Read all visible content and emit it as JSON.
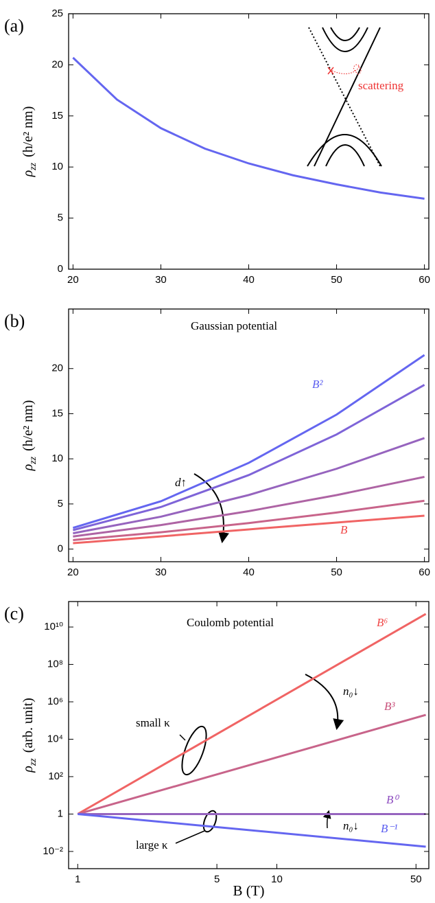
{
  "chart_data": [
    {
      "type": "line",
      "panel": "(a)",
      "ylabel": {
        "symbol": "ρ",
        "subscript": "zz",
        "unit": "(h/e² nm)"
      },
      "x": [
        20,
        25,
        30,
        35,
        40,
        45,
        50,
        55,
        60
      ],
      "series": [
        {
          "color": "#6466f0",
          "values": [
            20.7,
            16.6,
            13.8,
            11.8,
            10.35,
            9.2,
            8.3,
            7.5,
            6.9
          ]
        }
      ],
      "xlim": [
        19.5,
        60.5
      ],
      "xticks": [
        20,
        30,
        40,
        50,
        60
      ],
      "ylim": [
        0,
        25
      ],
      "yticks": [
        0,
        5,
        10,
        15,
        20,
        25
      ],
      "annotations": [
        "scattering"
      ]
    },
    {
      "type": "line",
      "panel": "(b)",
      "ylabel": {
        "symbol": "ρ",
        "subscript": "zz",
        "unit": "(h/e² nm)"
      },
      "x": [
        20,
        30,
        40,
        50,
        60
      ],
      "series": [
        {
          "color": "#6466f0",
          "values": [
            2.35,
            5.3,
            9.55,
            14.9,
            21.5
          ]
        },
        {
          "color": "#7e64d8",
          "values": [
            2.1,
            4.66,
            8.2,
            12.7,
            18.2
          ]
        },
        {
          "color": "#9664be",
          "values": [
            1.75,
            3.59,
            5.99,
            8.9,
            12.3
          ]
        },
        {
          "color": "#ae64a4",
          "values": [
            1.4,
            2.66,
            4.2,
            5.98,
            8.0
          ]
        },
        {
          "color": "#c8648a",
          "values": [
            1.0,
            1.86,
            2.88,
            4.05,
            5.35
          ]
        },
        {
          "color": "#f06464",
          "values": [
            0.65,
            1.41,
            2.18,
            2.94,
            3.7
          ]
        }
      ],
      "xlim": [
        19.5,
        60.5
      ],
      "xticks": [
        20,
        30,
        40,
        50,
        60
      ],
      "ylim": [
        -1.4,
        26.6
      ],
      "yticks": [
        0,
        5,
        10,
        15,
        20
      ],
      "annotations": [
        "Gaussian potential",
        "B²",
        "B",
        "d↑"
      ]
    },
    {
      "type": "line",
      "panel": "(c)",
      "xscale": "log",
      "yscale": "log",
      "ylabel": {
        "symbol": "ρ",
        "subscript": "zz",
        "unit": "(arb. unit)"
      },
      "xlabel": "B (T)",
      "x": [
        1,
        56
      ],
      "series": [
        {
          "color": "#f06464",
          "values": [
            1,
            50000000000
          ]
        },
        {
          "color": "#c8648a",
          "values": [
            1,
            200000
          ]
        },
        {
          "color": "#9664be",
          "values": [
            1,
            1
          ]
        },
        {
          "color": "#6466f0",
          "values": [
            1,
            0.018
          ]
        }
      ],
      "xlim": [
        0.9,
        58
      ],
      "xticks": [
        1,
        5,
        10,
        50
      ],
      "ylim": [
        0.0012,
        230000000000
      ],
      "yticks": [
        {
          "value": 0.01,
          "label": "10⁻²"
        },
        1,
        {
          "value": 100,
          "label": "10²"
        },
        {
          "value": 10000,
          "label": "10⁴"
        },
        {
          "value": 1000000,
          "label": "10⁶"
        },
        {
          "value": 100000000,
          "label": "10⁸"
        },
        {
          "value": 10000000000,
          "label": "10¹⁰"
        }
      ],
      "annotations": [
        "Coulomb potential",
        "B⁶",
        "B³",
        "B⁰",
        "B⁻¹",
        "small κ",
        "large κ",
        "n₀↓",
        "n₀↓"
      ]
    }
  ]
}
